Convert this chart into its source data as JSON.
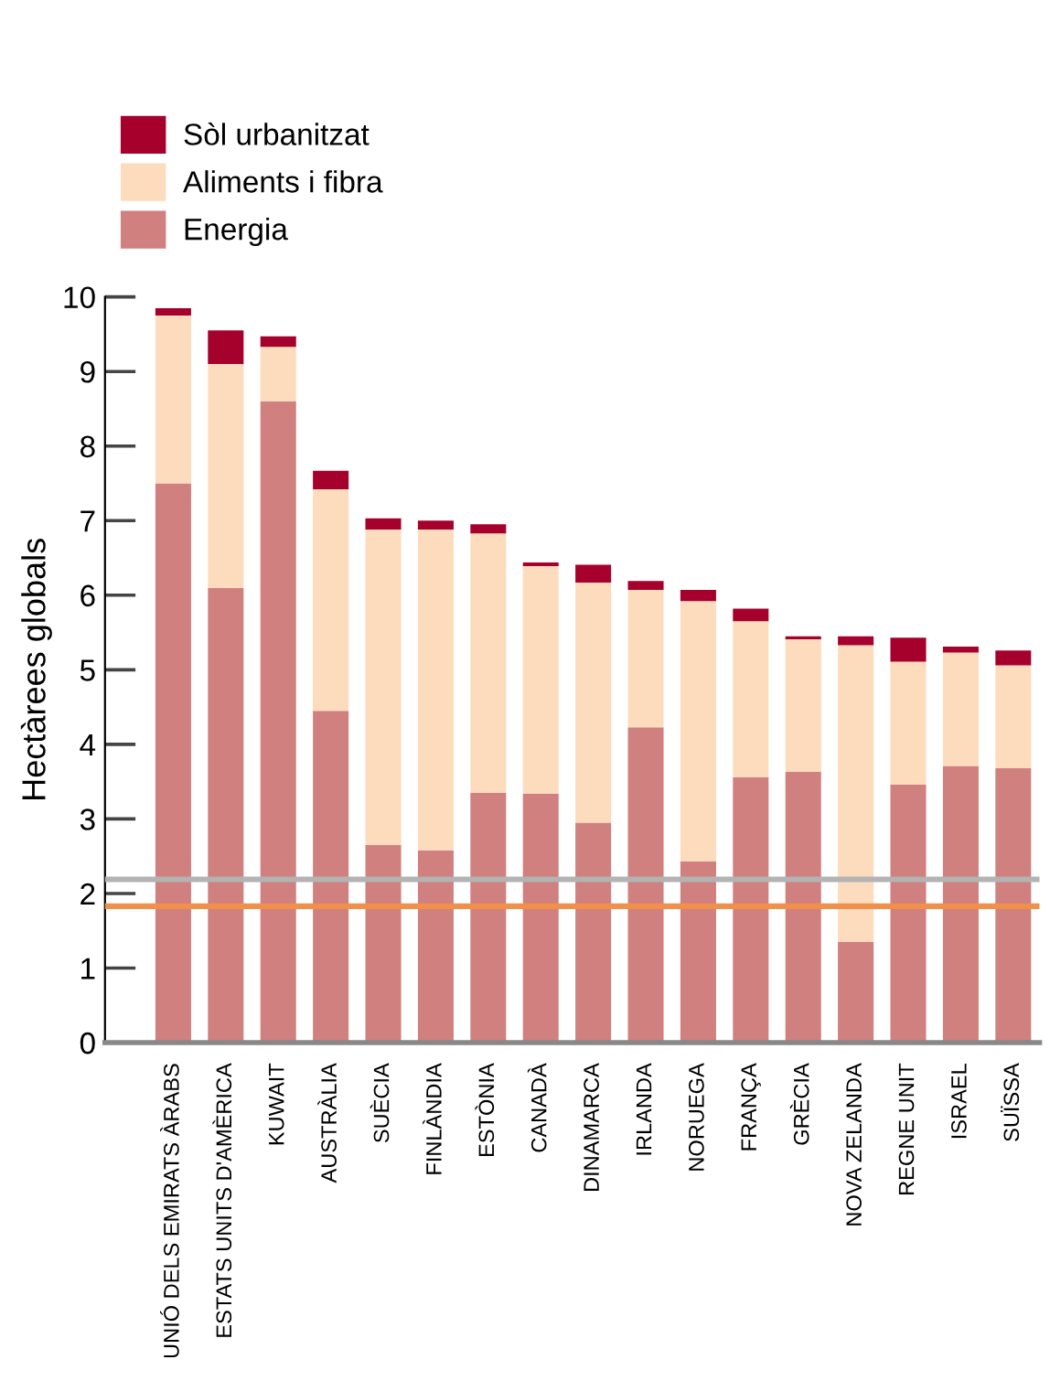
{
  "chart_data": {
    "type": "bar",
    "stacked": true,
    "ylabel": "Hectàrees globals",
    "categories": [
      "UNIÓ DELS EMIRATS ÀRABS",
      "ESTATS UNITS D'AMÈRICA",
      "KUWAIT",
      "AUSTRÀLIA",
      "SUÈCIA",
      "FINLÀNDIA",
      "ESTÒNIA",
      "CANADÀ",
      "DINAMARCA",
      "IRLANDA",
      "NORUEGA",
      "FRANÇA",
      "GRÈCIA",
      "NOVA ZELANDA",
      "REGNE UNIT",
      "ISRAEL",
      "SUÏSSA"
    ],
    "series": [
      {
        "name": "Energia",
        "color": "#d0807e",
        "values": [
          7.5,
          6.1,
          8.6,
          4.45,
          2.65,
          2.58,
          3.35,
          3.34,
          2.95,
          4.23,
          2.43,
          3.56,
          3.63,
          1.35,
          3.46,
          3.71,
          3.68
        ]
      },
      {
        "name": "Aliments i fibra",
        "color": "#fddbbd",
        "values": [
          2.25,
          3.0,
          0.73,
          2.97,
          4.23,
          4.3,
          3.48,
          3.05,
          3.22,
          1.84,
          3.49,
          2.09,
          1.78,
          3.98,
          1.65,
          1.52,
          1.38
        ]
      },
      {
        "name": "Sòl urbanitzat",
        "color": "#a6002c",
        "values": [
          0.1,
          0.45,
          0.14,
          0.25,
          0.15,
          0.12,
          0.12,
          0.05,
          0.24,
          0.12,
          0.15,
          0.17,
          0.04,
          0.12,
          0.32,
          0.08,
          0.2
        ]
      }
    ],
    "ylim": [
      0,
      10
    ],
    "yticks": [
      0,
      1,
      2,
      3,
      4,
      5,
      6,
      7,
      8,
      9,
      10
    ],
    "ref_lines": [
      {
        "axis": "y",
        "value": 2.19,
        "color": "#b3b3b3"
      },
      {
        "axis": "y",
        "value": 1.83,
        "color": "#f0904a"
      }
    ],
    "legend": "top left",
    "grid": false
  }
}
